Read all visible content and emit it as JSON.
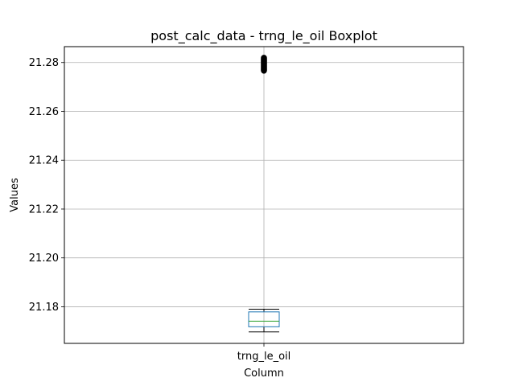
{
  "chart_data": {
    "type": "box",
    "title": "post_calc_data - trng_le_oil Boxplot",
    "xlabel": "Column",
    "ylabel": "Values",
    "categories": [
      "trng_le_oil"
    ],
    "ylim": [
      21.165,
      21.2865
    ],
    "yticks": [
      21.18,
      21.2,
      21.22,
      21.24,
      21.26,
      21.28
    ],
    "ytick_labels": [
      "21.18",
      "21.20",
      "21.22",
      "21.24",
      "21.26",
      "21.28"
    ],
    "grid": true,
    "boxes": [
      {
        "name": "trng_le_oil",
        "whisker_low": 21.1697,
        "q1": 21.1718,
        "median": 21.1741,
        "q3": 21.1779,
        "whisker_high": 21.179,
        "outliers": [
          21.2767,
          21.2771,
          21.2775,
          21.2779,
          21.2783,
          21.2787,
          21.2791,
          21.2795,
          21.2799,
          21.2803,
          21.2807,
          21.2811,
          21.2815,
          21.2819
        ]
      }
    ],
    "colors": {
      "box": "#1f77b4",
      "median": "#2ca02c",
      "whisker": "#000000",
      "outlier": "#000000",
      "grid": "#b0b0b0",
      "axes": "#000000"
    }
  }
}
